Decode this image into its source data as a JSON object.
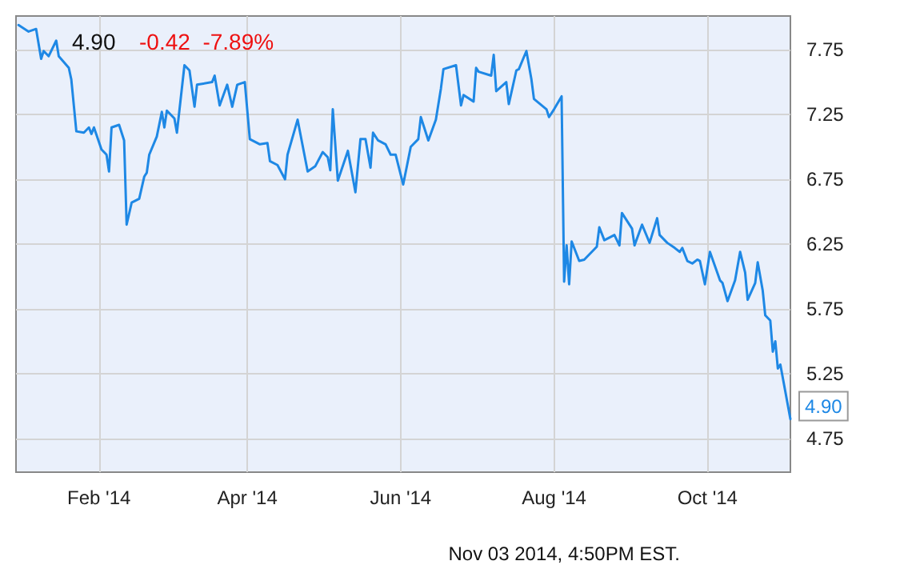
{
  "chart_data": {
    "type": "line",
    "title": "4.90",
    "subtitle": "-0.42  -7.89%",
    "annotations": [
      "Nov 03 2014, 4:50PM EST."
    ],
    "x": [
      "2013-12-31",
      "2014-01-04",
      "2014-01-07",
      "2014-01-09",
      "2014-01-10",
      "2014-01-12",
      "2014-01-15",
      "2014-01-16",
      "2014-01-20",
      "2014-01-21",
      "2014-01-23",
      "2014-01-26",
      "2014-01-28",
      "2014-01-29",
      "2014-01-30",
      "2014-02-02",
      "2014-02-04",
      "2014-02-05",
      "2014-02-06",
      "2014-02-09",
      "2014-02-11",
      "2014-02-12",
      "2014-02-14",
      "2014-02-17",
      "2014-02-19",
      "2014-02-20",
      "2014-02-21",
      "2014-02-24",
      "2014-02-26",
      "2014-02-27",
      "2014-02-28",
      "2014-03-03",
      "2014-03-04",
      "2014-03-07",
      "2014-03-09",
      "2014-03-11",
      "2014-03-12",
      "2014-03-18",
      "2014-03-19",
      "2014-03-21",
      "2014-03-24",
      "2014-03-26",
      "2014-03-28",
      "2014-03-31",
      "2014-04-02",
      "2014-04-06",
      "2014-04-09",
      "2014-04-10",
      "2014-04-13",
      "2014-04-16",
      "2014-04-17",
      "2014-04-21",
      "2014-04-25",
      "2014-04-28",
      "2014-05-01",
      "2014-05-03",
      "2014-05-04",
      "2014-05-05",
      "2014-05-07",
      "2014-05-11",
      "2014-05-14",
      "2014-05-16",
      "2014-05-18",
      "2014-05-20",
      "2014-05-21",
      "2014-05-23",
      "2014-05-26",
      "2014-05-28",
      "2014-05-30",
      "2014-06-02",
      "2014-06-05",
      "2014-06-08",
      "2014-06-09",
      "2014-06-12",
      "2014-06-15",
      "2014-06-17",
      "2014-06-18",
      "2014-06-23",
      "2014-06-25",
      "2014-06-26",
      "2014-06-30",
      "2014-07-01",
      "2014-07-02",
      "2014-07-07",
      "2014-07-08",
      "2014-07-09",
      "2014-07-13",
      "2014-07-14",
      "2014-07-17",
      "2014-07-18",
      "2014-07-21",
      "2014-07-23",
      "2014-07-24",
      "2014-07-29",
      "2014-07-30",
      "2014-08-01",
      "2014-08-04",
      "2014-08-05",
      "2014-08-06",
      "2014-08-07",
      "2014-08-08",
      "2014-08-11",
      "2014-08-13",
      "2014-08-18",
      "2014-08-19",
      "2014-08-21",
      "2014-08-25",
      "2014-08-27",
      "2014-08-28",
      "2014-09-01",
      "2014-09-02",
      "2014-09-05",
      "2014-09-08",
      "2014-09-11",
      "2014-09-12",
      "2014-09-15",
      "2014-09-18",
      "2014-09-20",
      "2014-09-21",
      "2014-09-23",
      "2014-09-25",
      "2014-09-27",
      "2014-09-28",
      "2014-09-30",
      "2014-10-02",
      "2014-10-06",
      "2014-10-07",
      "2014-10-09",
      "2014-10-12",
      "2014-10-14",
      "2014-10-16",
      "2014-10-17",
      "2014-10-20",
      "2014-10-21",
      "2014-10-23",
      "2014-10-24",
      "2014-10-26",
      "2014-10-27",
      "2014-10-28",
      "2014-10-29",
      "2014-10-30",
      "2014-11-03"
    ],
    "series": [
      {
        "color": "#1e88e5",
        "values": [
          7.94,
          7.89,
          7.91,
          7.68,
          7.74,
          7.7,
          7.82,
          7.7,
          7.61,
          7.52,
          7.12,
          7.11,
          7.15,
          7.1,
          7.15,
          6.98,
          6.94,
          6.81,
          7.15,
          7.17,
          7.05,
          6.4,
          6.57,
          6.6,
          6.77,
          6.8,
          6.94,
          7.08,
          7.27,
          7.15,
          7.28,
          7.22,
          7.11,
          7.63,
          7.59,
          7.31,
          7.48,
          7.5,
          7.55,
          7.32,
          7.48,
          7.31,
          7.48,
          7.5,
          7.06,
          7.02,
          7.03,
          6.89,
          6.86,
          6.75,
          6.94,
          7.21,
          6.81,
          6.85,
          6.96,
          6.92,
          6.82,
          7.29,
          6.74,
          6.97,
          6.65,
          7.06,
          7.06,
          6.84,
          7.11,
          7.05,
          7.02,
          6.94,
          6.94,
          6.71,
          7.0,
          7.06,
          7.23,
          7.05,
          7.21,
          7.45,
          7.6,
          7.63,
          7.32,
          7.4,
          7.35,
          7.61,
          7.58,
          7.55,
          7.71,
          7.43,
          7.5,
          7.33,
          7.59,
          7.6,
          7.74,
          7.52,
          7.37,
          7.29,
          7.23,
          7.29,
          7.39,
          5.96,
          6.24,
          5.94,
          6.27,
          6.12,
          6.13,
          6.23,
          6.38,
          6.28,
          6.32,
          6.24,
          6.49,
          6.37,
          6.24,
          6.4,
          6.26,
          6.45,
          6.32,
          6.26,
          6.22,
          6.19,
          6.22,
          6.12,
          6.1,
          6.13,
          6.12,
          5.94,
          6.19,
          5.97,
          5.95,
          5.81,
          5.97,
          6.19,
          6.03,
          5.82,
          5.95,
          6.11,
          5.89,
          5.7,
          5.66,
          5.42,
          5.5,
          5.29,
          5.32,
          4.9
        ],
        "value_labels": [
          null,
          null,
          null,
          null,
          null,
          null,
          null,
          null,
          null,
          null,
          null,
          null,
          null,
          null,
          null,
          null,
          null,
          null,
          null,
          null,
          null,
          null,
          null,
          null,
          null,
          null,
          null,
          null,
          null,
          null,
          null,
          null,
          null,
          null,
          null,
          null,
          null,
          null,
          null,
          null,
          null,
          null,
          null,
          null,
          null,
          null,
          null,
          null,
          null,
          null,
          null,
          null,
          null,
          null,
          null,
          null,
          null,
          null,
          null,
          null,
          null,
          null,
          null,
          null,
          null,
          null,
          null,
          null,
          null,
          null,
          null,
          null,
          null,
          null,
          null,
          null,
          null,
          null,
          null,
          null,
          null,
          null,
          null,
          null,
          null,
          null,
          null,
          null,
          null,
          null,
          null,
          null,
          null,
          null,
          null,
          null,
          null,
          null,
          null,
          null,
          null,
          null,
          null,
          null,
          null,
          null,
          null,
          null,
          null,
          null,
          null,
          null,
          null,
          null,
          null,
          null,
          null,
          null,
          null,
          null,
          null,
          null,
          null,
          null,
          null,
          null,
          null,
          null,
          null,
          null,
          null,
          null,
          null,
          null,
          null,
          null,
          null,
          null,
          null,
          null,
          null,
          "4.90"
        ]
      }
    ],
    "xlim": [
      "2013-12-30",
      "2014-11-03"
    ],
    "xticks": [
      {
        "value": "2014-02-01",
        "label": "Feb '14"
      },
      {
        "value": "2014-04-01",
        "label": "Apr '14"
      },
      {
        "value": "2014-06-01",
        "label": "Jun '14"
      },
      {
        "value": "2014-08-01",
        "label": "Aug '14"
      },
      {
        "value": "2014-10-01",
        "label": "Oct '14"
      }
    ],
    "ylim": [
      4.49,
      8.01
    ],
    "yticks": [
      4.75,
      5.25,
      5.75,
      6.25,
      6.75,
      7.25,
      7.75
    ],
    "grid": true,
    "marker": "none",
    "line_style": "solid"
  }
}
